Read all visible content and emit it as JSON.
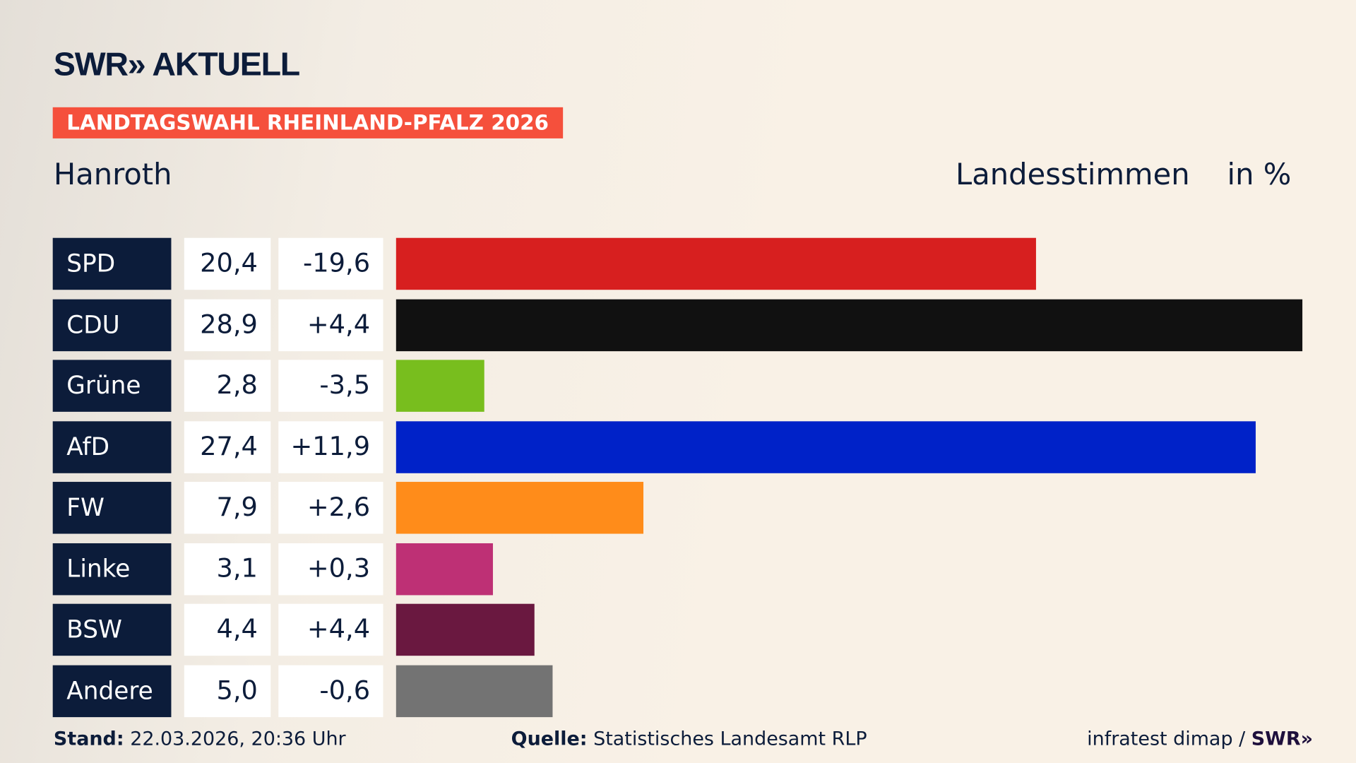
{
  "brand": "SWR» AKTUELL",
  "banner": "LANDTAGSWAHL RHEINLAND-PFALZ 2026",
  "place": "Hanroth",
  "metric": "Landesstimmen",
  "unit": "in %",
  "chart_data": {
    "type": "bar",
    "orientation": "horizontal",
    "categories": [
      "SPD",
      "CDU",
      "Grüne",
      "AfD",
      "FW",
      "Linke",
      "BSW",
      "Andere"
    ],
    "values": [
      20.4,
      28.9,
      2.8,
      27.4,
      7.9,
      3.1,
      4.4,
      5.0
    ],
    "value_labels": [
      "20,4",
      "28,9",
      "2,8",
      "27,4",
      "7,9",
      "3,1",
      "4,4",
      "5,0"
    ],
    "change_labels": [
      "-19,6",
      "+4,4",
      "-3,5",
      "+11,9",
      "+2,6",
      "+0,3",
      "+4,4",
      "-0,6"
    ],
    "colors": [
      "#d71f1f",
      "#111111",
      "#78be1e",
      "#0022c8",
      "#ff8c1a",
      "#be3075",
      "#6a1840",
      "#737373"
    ],
    "grid": false
  },
  "footer": {
    "stand_label": "Stand:",
    "stand_value": "22.03.2026, 20:36 Uhr",
    "source_label": "Quelle:",
    "source_value": "Statistisches Landesamt RLP",
    "credit": "infratest dimap /",
    "credit_brand": "SWR»"
  }
}
